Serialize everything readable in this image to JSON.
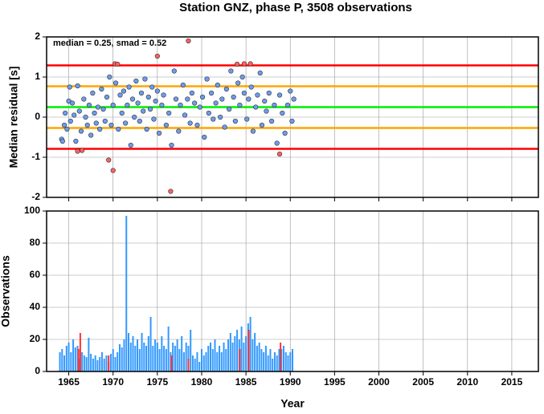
{
  "chart_data": [
    {
      "type": "scatter",
      "title": "Station GNZ, phase P, 3508 observations",
      "annotation": "median = 0.25, smad = 0.52",
      "ylabel": "Median residual [s]",
      "xlim": [
        1962.5,
        2018
      ],
      "ylim": [
        -2,
        2
      ],
      "yticks": [
        -2,
        -1,
        0,
        1,
        2
      ],
      "xticks": [
        1965,
        1970,
        1975,
        1980,
        1985,
        1990,
        1995,
        2000,
        2005,
        2010,
        2015
      ],
      "grid": true,
      "hlines": [
        {
          "value": 1.29,
          "color": "#ff0000"
        },
        {
          "value": 0.77,
          "color": "#ffa500"
        },
        {
          "value": 0.25,
          "color": "#00ee00"
        },
        {
          "value": -0.27,
          "color": "#ffa500"
        },
        {
          "value": -0.79,
          "color": "#ff0000"
        }
      ],
      "series": [
        {
          "color": "#6b9cf0",
          "x": [
            1964.2,
            1964.3,
            1964.5,
            1964.6,
            1964.8,
            1965.0,
            1965.1,
            1965.2,
            1965.4,
            1965.6,
            1965.8,
            1966.0,
            1966.2,
            1966.4,
            1966.7,
            1966.9,
            1967.1,
            1967.3,
            1967.5,
            1967.7,
            1967.9,
            1968.1,
            1968.3,
            1968.5,
            1968.7,
            1968.9,
            1969.1,
            1969.3,
            1969.6,
            1969.8,
            1970.0,
            1970.3,
            1970.6,
            1970.8,
            1971.0,
            1971.2,
            1971.4,
            1971.6,
            1971.8,
            1972.0,
            1972.2,
            1972.4,
            1972.6,
            1972.8,
            1973.0,
            1973.2,
            1973.4,
            1973.6,
            1973.8,
            1974.0,
            1974.2,
            1974.4,
            1974.6,
            1974.8,
            1975.0,
            1975.2,
            1975.5,
            1975.7,
            1976.0,
            1976.3,
            1976.6,
            1976.9,
            1977.1,
            1977.4,
            1977.6,
            1977.9,
            1978.1,
            1978.4,
            1978.7,
            1978.9,
            1979.2,
            1979.5,
            1979.8,
            1980.1,
            1980.3,
            1980.6,
            1980.8,
            1981.1,
            1981.3,
            1981.6,
            1981.8,
            1982.1,
            1982.3,
            1982.6,
            1982.8,
            1983.1,
            1983.3,
            1983.6,
            1983.8,
            1984.1,
            1984.3,
            1984.6,
            1984.8,
            1985.1,
            1985.3,
            1985.6,
            1985.8,
            1986.1,
            1986.3,
            1986.6,
            1986.8,
            1987.1,
            1987.3,
            1987.6,
            1987.9,
            1988.2,
            1988.5,
            1988.8,
            1989.1,
            1989.4,
            1989.7,
            1990.0,
            1990.2,
            1990.4
          ],
          "values": [
            -0.55,
            -0.6,
            -0.2,
            0.1,
            -0.3,
            0.4,
            0.75,
            -0.1,
            0.35,
            0.05,
            -0.6,
            0.78,
            0.15,
            -0.35,
            0.45,
            0.0,
            -0.2,
            0.3,
            -0.45,
            0.6,
            0.1,
            -0.15,
            0.25,
            -0.3,
            0.7,
            0.2,
            -0.1,
            0.5,
            1.0,
            -0.2,
            0.3,
            0.85,
            -0.3,
            0.55,
            0.1,
            0.65,
            -0.15,
            0.3,
            0.75,
            -0.7,
            0.45,
            0.0,
            0.9,
            0.35,
            -0.1,
            0.6,
            0.15,
            0.95,
            -0.3,
            0.5,
            0.2,
            0.75,
            -0.05,
            0.4,
            0.65,
            -0.4,
            0.3,
            0.55,
            -0.2,
            0.1,
            -0.7,
            1.15,
            0.45,
            -0.35,
            0.3,
            0.8,
            0.05,
            0.45,
            -0.15,
            0.6,
            0.35,
            -0.2,
            0.25,
            0.5,
            -0.5,
            0.95,
            0.1,
            0.6,
            -0.05,
            0.35,
            0.8,
            0.0,
            0.45,
            -0.25,
            0.7,
            0.2,
            1.15,
            0.5,
            -0.1,
            0.85,
            0.3,
            1.0,
            0.6,
            -0.05,
            0.45,
            0.75,
            -0.35,
            0.25,
            0.55,
            1.1,
            -0.2,
            0.4,
            0.15,
            0.6,
            -0.1,
            0.3,
            -0.65,
            0.55,
            0.1,
            -0.4,
            0.3,
            0.65,
            -0.1,
            0.45
          ]
        },
        {
          "color": "#ff6060",
          "x": [
            1966.0,
            1966.5,
            1969.5,
            1970.0,
            1970.2,
            1970.5,
            1975.0,
            1976.5,
            1978.5,
            1984.0,
            1984.8,
            1985.5,
            1988.8
          ],
          "values": [
            -0.85,
            -0.83,
            -1.07,
            -1.33,
            1.33,
            1.32,
            1.52,
            -1.85,
            1.9,
            1.32,
            1.33,
            1.33,
            -0.92
          ]
        }
      ]
    },
    {
      "type": "bar",
      "ylabel": "Observations",
      "xlabel": "Year",
      "xlim": [
        1962.5,
        2018
      ],
      "ylim": [
        0,
        100
      ],
      "yticks": [
        0,
        20,
        40,
        60,
        80,
        100
      ],
      "xticks": [
        1965,
        1970,
        1975,
        1980,
        1985,
        1990,
        1995,
        2000,
        2005,
        2010,
        2015
      ],
      "grid": true,
      "series": [
        {
          "color": "#3399ff",
          "x": [
            1964.0,
            1964.25,
            1964.5,
            1964.75,
            1965.0,
            1965.25,
            1965.5,
            1965.75,
            1966.0,
            1966.25,
            1966.5,
            1966.75,
            1967.0,
            1967.25,
            1967.5,
            1967.75,
            1968.0,
            1968.25,
            1968.5,
            1968.75,
            1969.0,
            1969.25,
            1969.5,
            1969.75,
            1970.0,
            1970.25,
            1970.5,
            1970.75,
            1971.0,
            1971.25,
            1971.5,
            1971.75,
            1972.0,
            1972.25,
            1972.5,
            1972.75,
            1973.0,
            1973.25,
            1973.5,
            1973.75,
            1974.0,
            1974.25,
            1974.5,
            1974.75,
            1975.0,
            1975.25,
            1975.5,
            1975.75,
            1976.0,
            1976.25,
            1976.5,
            1976.75,
            1977.0,
            1977.25,
            1977.5,
            1977.75,
            1978.0,
            1978.25,
            1978.5,
            1978.75,
            1979.0,
            1979.25,
            1979.5,
            1979.75,
            1980.0,
            1980.25,
            1980.5,
            1980.75,
            1981.0,
            1981.25,
            1981.5,
            1981.75,
            1982.0,
            1982.25,
            1982.5,
            1982.75,
            1983.0,
            1983.25,
            1983.5,
            1983.75,
            1984.0,
            1984.25,
            1984.5,
            1984.75,
            1985.0,
            1985.25,
            1985.5,
            1985.75,
            1986.0,
            1986.25,
            1986.5,
            1986.75,
            1987.0,
            1987.25,
            1987.5,
            1987.75,
            1988.0,
            1988.25,
            1988.5,
            1988.75,
            1989.0,
            1989.25,
            1989.5,
            1989.75,
            1990.0,
            1990.25
          ],
          "values": [
            12,
            14,
            10,
            16,
            18,
            12,
            20,
            15,
            16,
            8,
            12,
            10,
            9,
            21,
            11,
            8,
            10,
            7,
            9,
            12,
            8,
            10,
            6,
            11,
            14,
            9,
            12,
            17,
            15,
            20,
            97,
            24,
            18,
            22,
            16,
            20,
            14,
            24,
            18,
            16,
            22,
            34,
            16,
            20,
            18,
            14,
            22,
            16,
            14,
            28,
            12,
            18,
            16,
            20,
            14,
            22,
            12,
            18,
            16,
            26,
            10,
            8,
            12,
            6,
            14,
            10,
            12,
            16,
            18,
            14,
            20,
            12,
            16,
            12,
            18,
            14,
            20,
            24,
            18,
            22,
            26,
            20,
            28,
            18,
            22,
            30,
            34,
            20,
            24,
            16,
            18,
            14,
            12,
            16,
            10,
            14,
            8,
            12,
            10,
            14,
            14,
            16,
            12,
            10,
            12,
            14
          ]
        },
        {
          "color": "#ff3333",
          "x": [
            1966.1,
            1966.3,
            1969.5,
            1976.6,
            1978.5,
            1984.3,
            1985.3,
            1988.9
          ],
          "values": [
            14,
            24,
            10,
            10,
            8,
            14,
            26,
            18
          ]
        }
      ]
    }
  ]
}
